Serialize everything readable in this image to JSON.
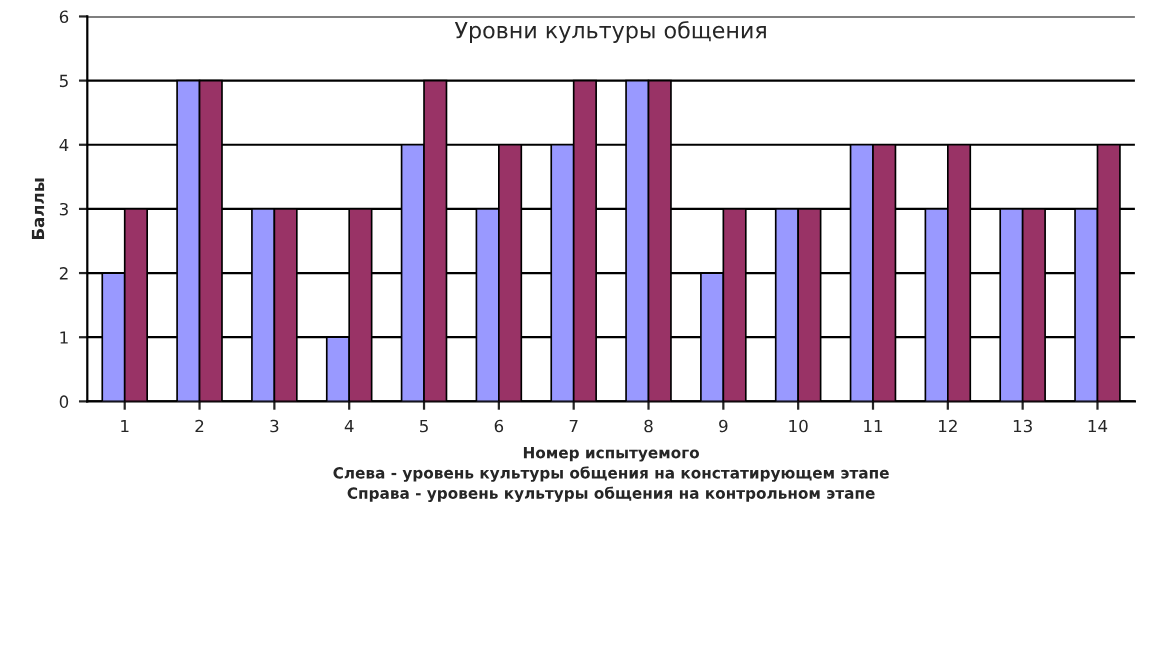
{
  "chart_data": {
    "type": "bar",
    "title": "Уровни культуры общения",
    "xlabel": "Номер испытуемого\nСлева - уровень культуры общения на констатирующем этапе\nСправа - уровень культуры общения на контрольном этапе",
    "ylabel": "Баллы",
    "categories": [
      "1",
      "2",
      "3",
      "4",
      "5",
      "6",
      "7",
      "8",
      "9",
      "10",
      "11",
      "12",
      "13",
      "14"
    ],
    "series": [
      {
        "color": "#9999ff",
        "values": [
          2,
          5,
          3,
          1,
          4,
          3,
          4,
          5,
          2,
          3,
          4,
          3,
          3,
          3
        ]
      },
      {
        "color": "#993366",
        "values": [
          3,
          5,
          3,
          3,
          5,
          4,
          5,
          5,
          3,
          3,
          4,
          4,
          3,
          4
        ]
      }
    ],
    "ylim": [
      0,
      6
    ],
    "yticks": [
      0,
      1,
      2,
      3,
      4,
      5,
      6
    ],
    "grid": "y",
    "legend": false
  }
}
